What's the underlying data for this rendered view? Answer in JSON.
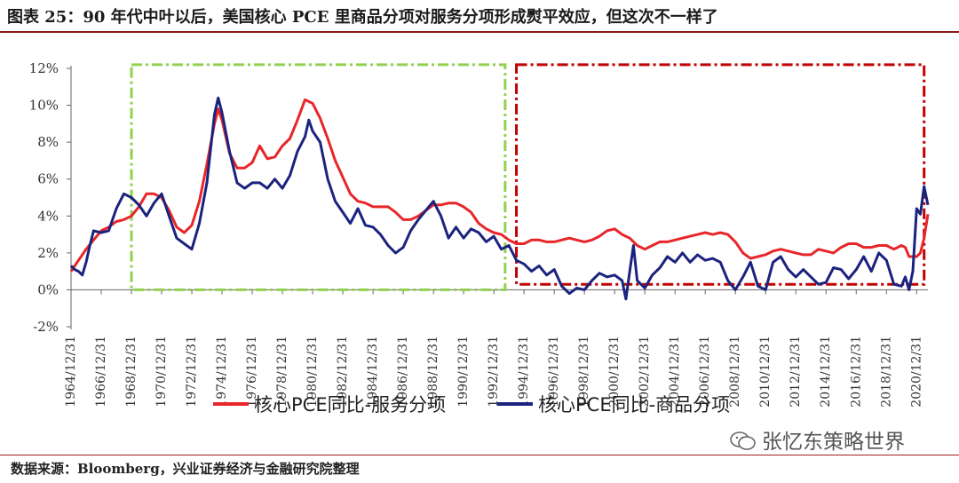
{
  "title": "图表 25：90 年代中叶以后，美国核心 PCE 里商品分项对服务分项形成熨平效应，但这次不一样了",
  "source": "数据来源：Bloomberg，兴业证券经济与金融研究院整理",
  "watermark": "张忆东策略世界",
  "watermark_icon": "wechat-icon",
  "colors": {
    "services": "#e8262a",
    "goods": "#1a237e",
    "green_box": "#92d050",
    "red_box": "#c00000",
    "axis": "#666666",
    "text": "#333333"
  },
  "chart_data": {
    "type": "line",
    "title": "",
    "xlabel": "",
    "ylabel": "",
    "ylim": [
      -0.02,
      0.12
    ],
    "y_ticks": [
      "-2%",
      "0%",
      "2%",
      "4%",
      "6%",
      "8%",
      "10%",
      "12%"
    ],
    "x_ticks": [
      "1964/12/31",
      "1966/12/31",
      "1968/12/31",
      "1970/12/31",
      "1972/12/31",
      "1974/12/31",
      "1976/12/31",
      "1978/12/31",
      "1980/12/31",
      "1982/12/31",
      "1984/12/31",
      "1986/12/31",
      "1988/12/31",
      "1990/12/31",
      "1992/12/31",
      "1994/12/31",
      "1996/12/31",
      "1998/12/31",
      "2000/12/31",
      "2002/12/31",
      "2004/12/31",
      "2006/12/31",
      "2008/12/31",
      "2010/12/31",
      "2012/12/31",
      "2014/12/31",
      "2016/12/31",
      "2018/12/31",
      "2020/12/31"
    ],
    "x_range": [
      "1964/12/31",
      "2021/09/30"
    ],
    "legend_position": "bottom",
    "grid": false,
    "series": [
      {
        "name": "核心PCE同比-服务分项",
        "color": "#e8262a",
        "points": [
          [
            "1964/12/31",
            0.01
          ],
          [
            "1965/06/30",
            0.016
          ],
          [
            "1965/12/31",
            0.022
          ],
          [
            "1966/06/30",
            0.027
          ],
          [
            "1966/12/31",
            0.032
          ],
          [
            "1967/06/30",
            0.034
          ],
          [
            "1967/12/31",
            0.037
          ],
          [
            "1968/06/30",
            0.038
          ],
          [
            "1968/12/31",
            0.04
          ],
          [
            "1969/06/30",
            0.045
          ],
          [
            "1969/12/31",
            0.052
          ],
          [
            "1970/06/30",
            0.052
          ],
          [
            "1970/12/31",
            0.05
          ],
          [
            "1971/06/30",
            0.043
          ],
          [
            "1971/12/31",
            0.034
          ],
          [
            "1972/06/30",
            0.031
          ],
          [
            "1972/12/31",
            0.035
          ],
          [
            "1973/06/30",
            0.048
          ],
          [
            "1973/12/31",
            0.068
          ],
          [
            "1974/06/30",
            0.09
          ],
          [
            "1974/09/30",
            0.098
          ],
          [
            "1974/12/31",
            0.092
          ],
          [
            "1975/06/30",
            0.074
          ],
          [
            "1975/12/31",
            0.066
          ],
          [
            "1976/06/30",
            0.066
          ],
          [
            "1976/12/31",
            0.069
          ],
          [
            "1977/06/30",
            0.078
          ],
          [
            "1977/12/31",
            0.071
          ],
          [
            "1978/06/30",
            0.072
          ],
          [
            "1978/12/31",
            0.078
          ],
          [
            "1979/06/30",
            0.082
          ],
          [
            "1979/12/31",
            0.092
          ],
          [
            "1980/06/30",
            0.103
          ],
          [
            "1980/12/31",
            0.101
          ],
          [
            "1981/06/30",
            0.093
          ],
          [
            "1981/12/31",
            0.082
          ],
          [
            "1982/06/30",
            0.07
          ],
          [
            "1982/12/31",
            0.061
          ],
          [
            "1983/06/30",
            0.052
          ],
          [
            "1983/12/31",
            0.048
          ],
          [
            "1984/06/30",
            0.047
          ],
          [
            "1984/12/31",
            0.045
          ],
          [
            "1985/06/30",
            0.045
          ],
          [
            "1985/12/31",
            0.045
          ],
          [
            "1986/06/30",
            0.042
          ],
          [
            "1986/12/31",
            0.038
          ],
          [
            "1987/06/30",
            0.038
          ],
          [
            "1987/12/31",
            0.04
          ],
          [
            "1988/06/30",
            0.043
          ],
          [
            "1988/12/31",
            0.046
          ],
          [
            "1989/06/30",
            0.046
          ],
          [
            "1989/12/31",
            0.047
          ],
          [
            "1990/06/30",
            0.047
          ],
          [
            "1990/12/31",
            0.045
          ],
          [
            "1991/06/30",
            0.042
          ],
          [
            "1991/12/31",
            0.036
          ],
          [
            "1992/06/30",
            0.033
          ],
          [
            "1992/12/31",
            0.031
          ],
          [
            "1993/06/30",
            0.03
          ],
          [
            "1993/12/31",
            0.027
          ],
          [
            "1994/06/30",
            0.025
          ],
          [
            "1994/12/31",
            0.025
          ],
          [
            "1995/06/30",
            0.027
          ],
          [
            "1995/12/31",
            0.027
          ],
          [
            "1996/06/30",
            0.026
          ],
          [
            "1996/12/31",
            0.026
          ],
          [
            "1997/06/30",
            0.027
          ],
          [
            "1997/12/31",
            0.028
          ],
          [
            "1998/06/30",
            0.027
          ],
          [
            "1998/12/31",
            0.026
          ],
          [
            "1999/06/30",
            0.027
          ],
          [
            "1999/12/31",
            0.029
          ],
          [
            "2000/06/30",
            0.032
          ],
          [
            "2000/12/31",
            0.033
          ],
          [
            "2001/06/30",
            0.03
          ],
          [
            "2001/12/31",
            0.028
          ],
          [
            "2002/06/30",
            0.024
          ],
          [
            "2002/12/31",
            0.022
          ],
          [
            "2003/06/30",
            0.024
          ],
          [
            "2003/12/31",
            0.026
          ],
          [
            "2004/06/30",
            0.026
          ],
          [
            "2004/12/31",
            0.027
          ],
          [
            "2005/06/30",
            0.028
          ],
          [
            "2005/12/31",
            0.029
          ],
          [
            "2006/06/30",
            0.03
          ],
          [
            "2006/12/31",
            0.031
          ],
          [
            "2007/06/30",
            0.03
          ],
          [
            "2007/12/31",
            0.031
          ],
          [
            "2008/06/30",
            0.03
          ],
          [
            "2008/12/31",
            0.026
          ],
          [
            "2009/06/30",
            0.02
          ],
          [
            "2009/12/31",
            0.017
          ],
          [
            "2010/06/30",
            0.018
          ],
          [
            "2010/12/31",
            0.019
          ],
          [
            "2011/06/30",
            0.021
          ],
          [
            "2011/12/31",
            0.022
          ],
          [
            "2012/06/30",
            0.021
          ],
          [
            "2012/12/31",
            0.02
          ],
          [
            "2013/06/30",
            0.019
          ],
          [
            "2013/12/31",
            0.019
          ],
          [
            "2014/06/30",
            0.022
          ],
          [
            "2014/12/31",
            0.021
          ],
          [
            "2015/06/30",
            0.02
          ],
          [
            "2015/12/31",
            0.023
          ],
          [
            "2016/06/30",
            0.025
          ],
          [
            "2016/12/31",
            0.025
          ],
          [
            "2017/06/30",
            0.023
          ],
          [
            "2017/12/31",
            0.023
          ],
          [
            "2018/06/30",
            0.024
          ],
          [
            "2018/12/31",
            0.024
          ],
          [
            "2019/06/30",
            0.022
          ],
          [
            "2019/12/31",
            0.024
          ],
          [
            "2020/03/31",
            0.023
          ],
          [
            "2020/06/30",
            0.018
          ],
          [
            "2020/09/30",
            0.018
          ],
          [
            "2020/12/31",
            0.018
          ],
          [
            "2021/03/31",
            0.02
          ],
          [
            "2021/06/30",
            0.028
          ],
          [
            "2021/09/30",
            0.041
          ]
        ]
      },
      {
        "name": "核心PCE同比-商品分项",
        "color": "#1a237e",
        "points": [
          [
            "1964/12/31",
            0.013
          ],
          [
            "1965/03/31",
            0.011
          ],
          [
            "1965/06/30",
            0.01
          ],
          [
            "1965/09/30",
            0.008
          ],
          [
            "1965/12/31",
            0.015
          ],
          [
            "1966/03/31",
            0.024
          ],
          [
            "1966/06/30",
            0.032
          ],
          [
            "1966/12/31",
            0.031
          ],
          [
            "1967/06/30",
            0.032
          ],
          [
            "1967/12/31",
            0.044
          ],
          [
            "1968/06/30",
            0.052
          ],
          [
            "1968/12/31",
            0.05
          ],
          [
            "1969/06/30",
            0.046
          ],
          [
            "1969/12/31",
            0.04
          ],
          [
            "1970/06/30",
            0.047
          ],
          [
            "1970/12/31",
            0.052
          ],
          [
            "1971/06/30",
            0.04
          ],
          [
            "1971/12/31",
            0.028
          ],
          [
            "1972/06/30",
            0.025
          ],
          [
            "1972/12/31",
            0.022
          ],
          [
            "1973/06/30",
            0.036
          ],
          [
            "1973/12/31",
            0.058
          ],
          [
            "1974/06/30",
            0.095
          ],
          [
            "1974/09/30",
            0.104
          ],
          [
            "1974/12/31",
            0.096
          ],
          [
            "1975/06/30",
            0.075
          ],
          [
            "1975/12/31",
            0.058
          ],
          [
            "1976/06/30",
            0.055
          ],
          [
            "1976/12/31",
            0.058
          ],
          [
            "1977/06/30",
            0.058
          ],
          [
            "1977/12/31",
            0.055
          ],
          [
            "1978/06/30",
            0.06
          ],
          [
            "1978/12/31",
            0.055
          ],
          [
            "1979/06/30",
            0.062
          ],
          [
            "1979/12/31",
            0.075
          ],
          [
            "1980/06/30",
            0.083
          ],
          [
            "1980/09/30",
            0.092
          ],
          [
            "1980/12/31",
            0.086
          ],
          [
            "1981/06/30",
            0.08
          ],
          [
            "1981/12/31",
            0.06
          ],
          [
            "1982/06/30",
            0.048
          ],
          [
            "1982/12/31",
            0.042
          ],
          [
            "1983/06/30",
            0.036
          ],
          [
            "1983/12/31",
            0.044
          ],
          [
            "1984/06/30",
            0.035
          ],
          [
            "1984/12/31",
            0.034
          ],
          [
            "1985/06/30",
            0.03
          ],
          [
            "1985/12/31",
            0.024
          ],
          [
            "1986/06/30",
            0.02
          ],
          [
            "1986/12/31",
            0.023
          ],
          [
            "1987/06/30",
            0.032
          ],
          [
            "1987/12/31",
            0.038
          ],
          [
            "1988/06/30",
            0.043
          ],
          [
            "1988/12/31",
            0.048
          ],
          [
            "1989/06/30",
            0.04
          ],
          [
            "1989/12/31",
            0.028
          ],
          [
            "1990/06/30",
            0.034
          ],
          [
            "1990/12/31",
            0.028
          ],
          [
            "1991/06/30",
            0.033
          ],
          [
            "1991/12/31",
            0.031
          ],
          [
            "1992/06/30",
            0.026
          ],
          [
            "1992/12/31",
            0.029
          ],
          [
            "1993/06/30",
            0.022
          ],
          [
            "1993/12/31",
            0.024
          ],
          [
            "1994/06/30",
            0.016
          ],
          [
            "1994/12/31",
            0.014
          ],
          [
            "1995/06/30",
            0.01
          ],
          [
            "1995/12/31",
            0.013
          ],
          [
            "1996/06/30",
            0.008
          ],
          [
            "1996/12/31",
            0.011
          ],
          [
            "1997/06/30",
            0.002
          ],
          [
            "1997/12/31",
            -0.002
          ],
          [
            "1998/06/30",
            0.001
          ],
          [
            "1998/12/31",
            0.0
          ],
          [
            "1999/06/30",
            0.005
          ],
          [
            "1999/12/31",
            0.009
          ],
          [
            "2000/06/30",
            0.007
          ],
          [
            "2000/12/31",
            0.008
          ],
          [
            "2001/06/30",
            0.005
          ],
          [
            "2001/09/30",
            -0.005
          ],
          [
            "2001/12/31",
            0.01
          ],
          [
            "2002/03/31",
            0.024
          ],
          [
            "2002/06/30",
            0.005
          ],
          [
            "2002/12/31",
            0.001
          ],
          [
            "2003/06/30",
            0.008
          ],
          [
            "2003/12/31",
            0.012
          ],
          [
            "2004/06/30",
            0.018
          ],
          [
            "2004/12/31",
            0.015
          ],
          [
            "2005/06/30",
            0.02
          ],
          [
            "2005/12/31",
            0.015
          ],
          [
            "2006/06/30",
            0.019
          ],
          [
            "2006/12/31",
            0.016
          ],
          [
            "2007/06/30",
            0.017
          ],
          [
            "2007/12/31",
            0.015
          ],
          [
            "2008/06/30",
            0.005
          ],
          [
            "2008/12/31",
            0.0
          ],
          [
            "2009/06/30",
            0.007
          ],
          [
            "2009/12/31",
            0.015
          ],
          [
            "2010/06/30",
            0.002
          ],
          [
            "2010/12/31",
            0.0
          ],
          [
            "2011/06/30",
            0.015
          ],
          [
            "2011/12/31",
            0.018
          ],
          [
            "2012/06/30",
            0.011
          ],
          [
            "2012/12/31",
            0.007
          ],
          [
            "2013/06/30",
            0.011
          ],
          [
            "2013/12/31",
            0.007
          ],
          [
            "2014/06/30",
            0.003
          ],
          [
            "2014/12/31",
            0.004
          ],
          [
            "2015/06/30",
            0.012
          ],
          [
            "2015/12/31",
            0.011
          ],
          [
            "2016/06/30",
            0.006
          ],
          [
            "2016/12/31",
            0.011
          ],
          [
            "2017/06/30",
            0.018
          ],
          [
            "2017/12/31",
            0.01
          ],
          [
            "2018/06/30",
            0.02
          ],
          [
            "2018/12/31",
            0.016
          ],
          [
            "2019/06/30",
            0.003
          ],
          [
            "2019/12/31",
            0.002
          ],
          [
            "2020/03/31",
            0.007
          ],
          [
            "2020/06/30",
            0.0
          ],
          [
            "2020/09/30",
            0.01
          ],
          [
            "2020/12/31",
            0.044
          ],
          [
            "2021/03/31",
            0.041
          ],
          [
            "2021/06/30",
            0.056
          ],
          [
            "2021/09/30",
            0.046
          ]
        ]
      }
    ],
    "annotations": [
      {
        "type": "box",
        "style": "dash-dot",
        "color": "#92d050",
        "from": "1968/12/31",
        "to": "1993/09/30",
        "ymin": 0.0,
        "ymax": 0.122
      },
      {
        "type": "box",
        "style": "dash-dot",
        "color": "#c00000",
        "from": "1994/06/30",
        "to": "2021/06/30",
        "ymin": 0.003,
        "ymax": 0.122
      }
    ]
  }
}
